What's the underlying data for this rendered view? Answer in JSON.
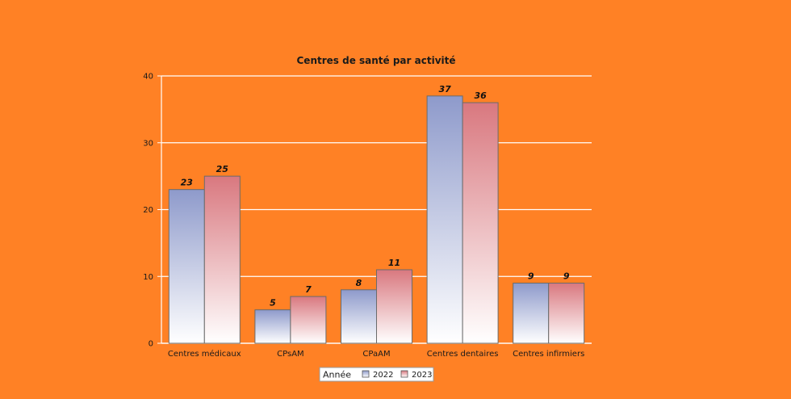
{
  "chart_data": {
    "type": "bar",
    "title": "Centres de santé par activité",
    "categories": [
      "Centres médicaux",
      "CPsAM",
      "CPaAM",
      "Centres dentaires",
      "Centres infirmiers"
    ],
    "series": [
      {
        "name": "2022",
        "values": [
          23,
          5,
          8,
          37,
          9
        ],
        "color": "#8e9acb"
      },
      {
        "name": "2023",
        "values": [
          25,
          7,
          11,
          36,
          9
        ],
        "color": "#d9787f"
      }
    ],
    "ylim": [
      0,
      40
    ],
    "yticks": [
      0,
      10,
      20,
      30,
      40
    ],
    "grid": true,
    "legend": {
      "title": "Année",
      "position": "bottom-center"
    },
    "background_color": "#ff8125"
  }
}
